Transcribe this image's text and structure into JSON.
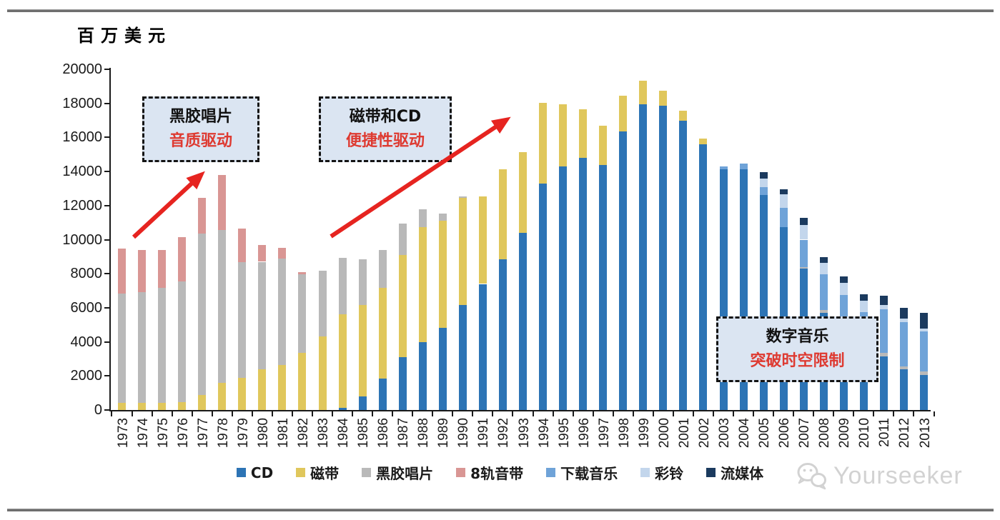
{
  "unit_label": "百万美元",
  "watermark": "Yourseeker",
  "annotations": [
    {
      "title": "黑胶唱片",
      "subtitle": "音质驱动"
    },
    {
      "title": "磁带和CD",
      "subtitle": "便捷性驱动"
    },
    {
      "title": "数字音乐",
      "subtitle": "突破时空限制"
    }
  ],
  "colors": {
    "annotation_bg": "#dbe5f2",
    "annotation_red_text": "#DE3A31",
    "arrow_red": "#E62420",
    "axis": "#1a1a1a"
  },
  "chart_data": {
    "type": "bar",
    "stacked": true,
    "title": "",
    "xlabel": "",
    "ylabel": "百万美元",
    "ylim": [
      0,
      20000
    ],
    "yticks": [
      0,
      2000,
      4000,
      6000,
      8000,
      10000,
      12000,
      14000,
      16000,
      18000,
      20000
    ],
    "grid": false,
    "legend_position": "bottom",
    "stack_order": "bottom-to-top equals series order",
    "categories": [
      "1973",
      "1974",
      "1975",
      "1976",
      "1977",
      "1978",
      "1979",
      "1980",
      "1981",
      "1982",
      "1983",
      "1984",
      "1985",
      "1986",
      "1987",
      "1988",
      "1989",
      "1990",
      "1991",
      "1992",
      "1993",
      "1994",
      "1995",
      "1996",
      "1997",
      "1998",
      "1999",
      "2000",
      "2001",
      "2002",
      "2003",
      "2004",
      "2005",
      "2006",
      "2007",
      "2008",
      "2009",
      "2010",
      "2011",
      "2012",
      "2013"
    ],
    "series": [
      {
        "name": "CD",
        "color": "#2D74B5",
        "values": [
          0,
          0,
          0,
          0,
          0,
          0,
          0,
          0,
          0,
          0,
          0,
          130,
          790,
          1850,
          3100,
          4000,
          4820,
          6150,
          7400,
          8850,
          10400,
          13300,
          14300,
          14800,
          14400,
          16350,
          17950,
          17850,
          17000,
          15600,
          14150,
          14150,
          12600,
          10750,
          8300,
          5700,
          4400,
          3550,
          3150,
          2370,
          2050
        ]
      },
      {
        "name": "磁带",
        "color": "#E0C75C",
        "values": [
          400,
          400,
          400,
          450,
          900,
          1600,
          1900,
          2400,
          2650,
          3350,
          4330,
          5500,
          5360,
          5310,
          6000,
          6740,
          6300,
          6300,
          5150,
          5300,
          4750,
          4750,
          3650,
          2850,
          2300,
          2100,
          1400,
          900,
          550,
          350,
          0,
          0,
          0,
          0,
          0,
          0,
          0,
          0,
          0,
          0,
          0
        ]
      },
      {
        "name": "黑胶唱片",
        "color": "#B9B9B9",
        "values": [
          6450,
          6500,
          6750,
          7100,
          9450,
          8950,
          6770,
          6300,
          6230,
          4600,
          3850,
          3280,
          2690,
          2250,
          1850,
          1040,
          430,
          100,
          0,
          0,
          0,
          0,
          0,
          0,
          0,
          0,
          0,
          0,
          0,
          0,
          0,
          0,
          0,
          0,
          100,
          150,
          150,
          150,
          200,
          200,
          200
        ]
      },
      {
        "name": "8轨音带",
        "color": "#D99694",
        "values": [
          2630,
          2500,
          2250,
          2600,
          2100,
          3250,
          1960,
          970,
          630,
          150,
          0,
          0,
          0,
          0,
          0,
          0,
          0,
          0,
          0,
          0,
          0,
          0,
          0,
          0,
          0,
          0,
          0,
          0,
          0,
          0,
          0,
          0,
          0,
          0,
          0,
          0,
          0,
          0,
          0,
          0,
          0
        ]
      },
      {
        "name": "下载音乐",
        "color": "#6FA3D8",
        "values": [
          0,
          0,
          0,
          0,
          0,
          0,
          0,
          0,
          0,
          0,
          0,
          0,
          0,
          0,
          0,
          0,
          0,
          0,
          0,
          0,
          0,
          0,
          0,
          0,
          0,
          0,
          0,
          0,
          0,
          0,
          150,
          300,
          500,
          1100,
          1600,
          2100,
          2190,
          2060,
          2550,
          2570,
          2350
        ]
      },
      {
        "name": "彩铃",
        "color": "#C3D6EC",
        "values": [
          0,
          0,
          0,
          0,
          0,
          0,
          0,
          0,
          0,
          0,
          0,
          0,
          0,
          0,
          0,
          0,
          0,
          0,
          0,
          0,
          0,
          0,
          0,
          0,
          0,
          0,
          0,
          0,
          0,
          0,
          0,
          0,
          500,
          800,
          870,
          680,
          740,
          670,
          250,
          240,
          200
        ]
      },
      {
        "name": "流媒体",
        "color": "#1B3A5E",
        "values": [
          0,
          0,
          0,
          0,
          0,
          0,
          0,
          0,
          0,
          0,
          0,
          0,
          0,
          0,
          0,
          0,
          0,
          0,
          0,
          0,
          0,
          0,
          0,
          0,
          0,
          0,
          0,
          0,
          0,
          0,
          0,
          0,
          350,
          300,
          420,
          350,
          380,
          380,
          560,
          630,
          900
        ]
      }
    ]
  }
}
